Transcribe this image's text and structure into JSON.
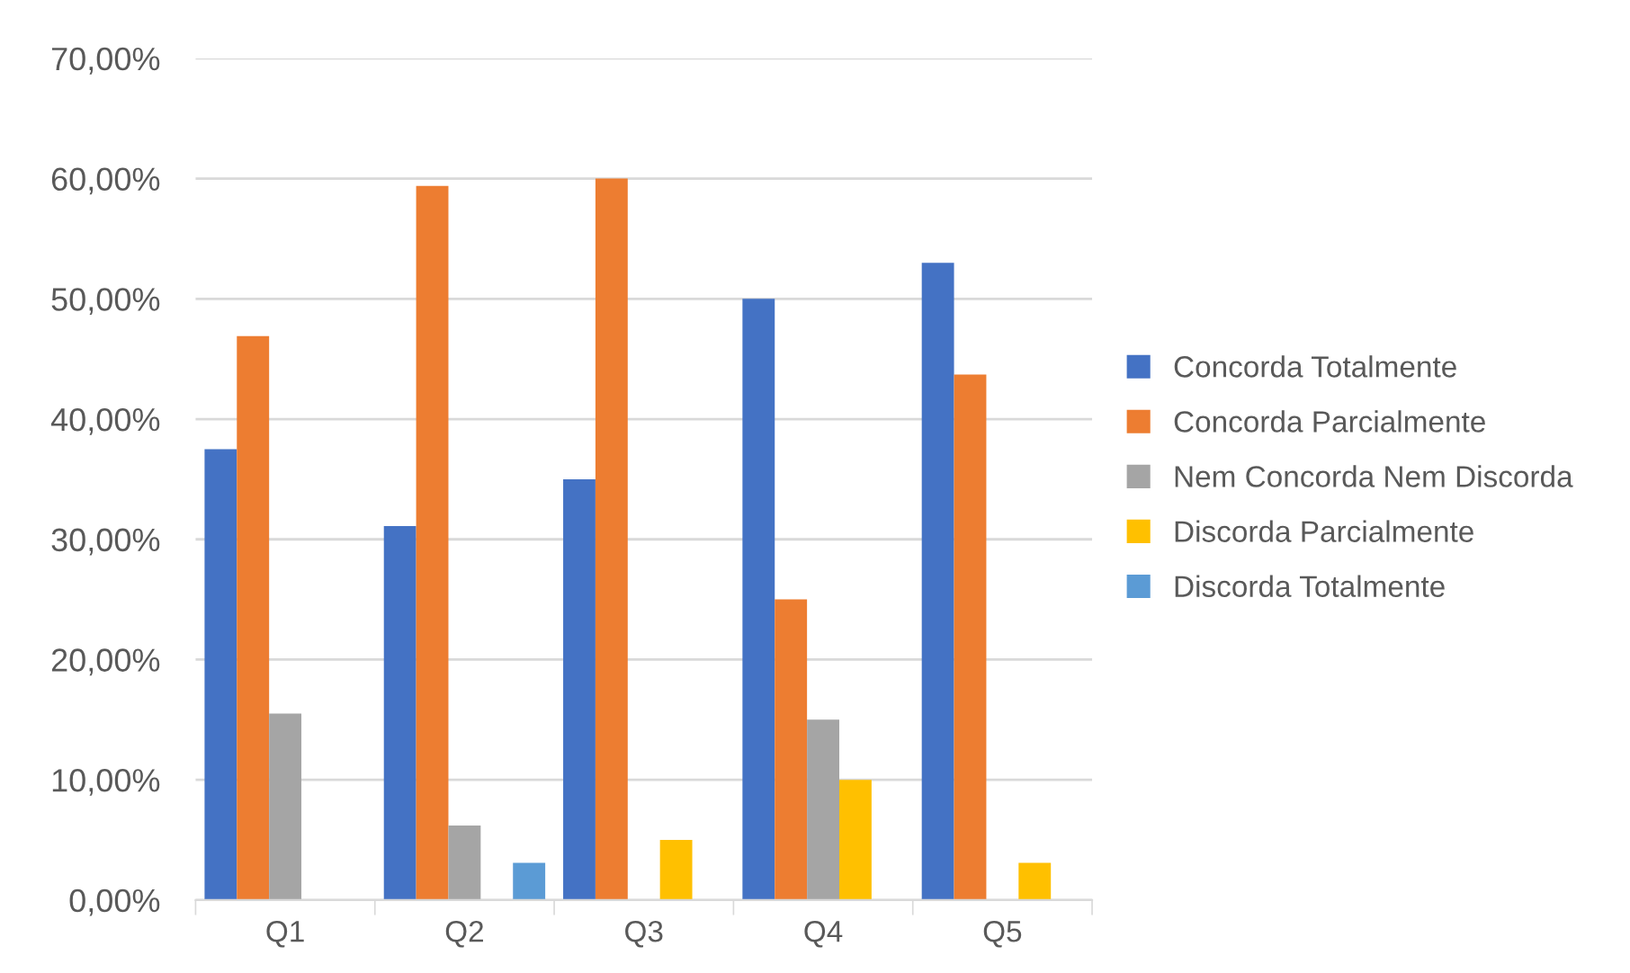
{
  "chart_data": {
    "type": "bar",
    "categories": [
      "Q1",
      "Q2",
      "Q3",
      "Q4",
      "Q5"
    ],
    "series": [
      {
        "name": "Concorda Totalmente",
        "color": "#4472c4",
        "values": [
          37.5,
          31.1,
          35.0,
          50.0,
          53.0
        ]
      },
      {
        "name": "Concorda Parcialmente",
        "color": "#ed7d31",
        "values": [
          46.9,
          59.4,
          60.0,
          25.0,
          43.7
        ]
      },
      {
        "name": "Nem Concorda Nem Discorda",
        "color": "#a5a5a5",
        "values": [
          15.5,
          6.2,
          null,
          15.0,
          null
        ]
      },
      {
        "name": "Discorda Parcialmente",
        "color": "#ffc000",
        "values": [
          null,
          null,
          5.0,
          10.0,
          3.1
        ]
      },
      {
        "name": "Discorda Totalmente",
        "color": "#5b9bd5",
        "values": [
          null,
          3.1,
          null,
          null,
          null
        ]
      }
    ],
    "ylim": [
      0,
      70
    ],
    "yticks": [
      {
        "value": 0,
        "label": "0,00%"
      },
      {
        "value": 10,
        "label": "10,00%"
      },
      {
        "value": 20,
        "label": "20,00%"
      },
      {
        "value": 30,
        "label": "30,00%"
      },
      {
        "value": 40,
        "label": "40,00%"
      },
      {
        "value": 50,
        "label": "50,00%"
      },
      {
        "value": 60,
        "label": "60,00%"
      },
      {
        "value": 70,
        "label": "70,00%"
      }
    ],
    "grid": "y",
    "legend": "right"
  }
}
